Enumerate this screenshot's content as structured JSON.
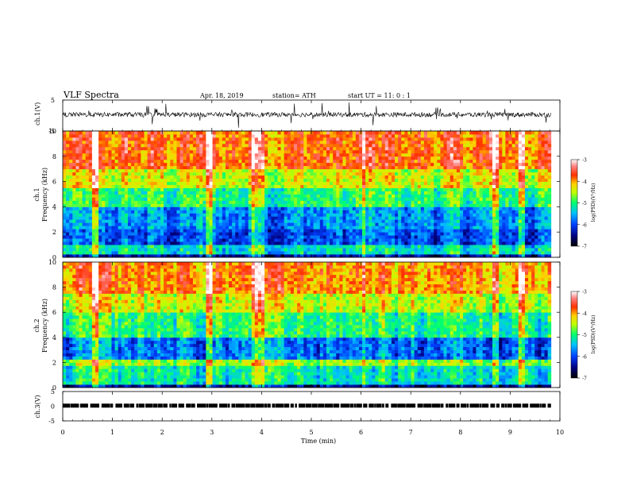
{
  "header": {
    "title": "VLF  Spectra",
    "date": "Apr. 18, 2019",
    "station": "station= ATH",
    "start": "start  UT  =    11: 0   : 1"
  },
  "chart_data": [
    {
      "type": "line",
      "panel": "ch1-waveform",
      "ylabel": "ch.1(V)",
      "yticks": [
        "5",
        "-5"
      ],
      "ylim": [
        -5,
        5
      ],
      "xlim": [
        0,
        10
      ],
      "x_extent": [
        0,
        9.82
      ],
      "description_values": {
        "baseline_v": 0.3,
        "noise_amplitude_v": 1.5
      },
      "color": "#000000"
    },
    {
      "type": "heatmap",
      "panel": "ch1-spectrogram",
      "ylabel_top": "ch.1",
      "ylabel": "Frequency (kHz)",
      "yticks": [
        "0",
        "2",
        "4",
        "6",
        "8",
        "10"
      ],
      "ylim": [
        0,
        10
      ],
      "xlim": [
        0,
        10
      ],
      "x_extent": [
        0,
        9.82
      ],
      "colorbar": {
        "label": "log(PSD)(V²/Hz)",
        "ticks": [
          "-3",
          "-4",
          "-5",
          "-6",
          "-7"
        ],
        "range": [
          -7,
          -3
        ]
      },
      "bands_khz": [
        {
          "f": [
            0,
            0.3
          ],
          "level": -6.4
        },
        {
          "f": [
            0.3,
            1.1
          ],
          "level": -5.3
        },
        {
          "f": [
            1.1,
            2.2
          ],
          "level": -6.0
        },
        {
          "f": [
            2.2,
            4.0
          ],
          "level": -5.7
        },
        {
          "f": [
            4.0,
            5.5
          ],
          "level": -5.0
        },
        {
          "f": [
            5.5,
            7.0
          ],
          "level": -4.4
        },
        {
          "f": [
            7.0,
            10.0
          ],
          "level": -3.8
        }
      ],
      "vertical_features_min": [
        0.65,
        2.95,
        3.85,
        4.0,
        6.05,
        8.72,
        9.22
      ]
    },
    {
      "type": "heatmap",
      "panel": "ch2-spectrogram",
      "ylabel_top": "ch.2",
      "ylabel": "Frequency (kHz)",
      "yticks": [
        "0",
        "2",
        "4",
        "6",
        "8",
        "10"
      ],
      "ylim": [
        0,
        10
      ],
      "xlim": [
        0,
        10
      ],
      "x_extent": [
        0,
        9.82
      ],
      "colorbar": {
        "label": "log(PSD)(V²/Hz)",
        "ticks": [
          "-3",
          "-4",
          "-5",
          "-6",
          "-7"
        ],
        "range": [
          -7,
          -3
        ]
      },
      "bands_khz": [
        {
          "f": [
            0,
            0.3
          ],
          "level": -6.4
        },
        {
          "f": [
            0.3,
            1.8
          ],
          "level": -5.2
        },
        {
          "f": [
            1.8,
            2.3
          ],
          "level": -4.6
        },
        {
          "f": [
            2.3,
            4.0
          ],
          "level": -5.8
        },
        {
          "f": [
            4.0,
            6.0
          ],
          "level": -5.0
        },
        {
          "f": [
            6.0,
            7.5
          ],
          "level": -4.4
        },
        {
          "f": [
            7.5,
            10.0
          ],
          "level": -3.9
        }
      ],
      "vertical_features_min": [
        0.65,
        2.95,
        3.85,
        4.0,
        6.05,
        8.72,
        9.22
      ]
    },
    {
      "type": "line",
      "panel": "ch3-waveform",
      "ylabel": "ch.3(V)",
      "yticks": [
        "5",
        "0",
        "-5"
      ],
      "ylim": [
        -5,
        5
      ],
      "xlim": [
        0,
        10
      ],
      "x_extent": [
        0,
        9.82
      ],
      "description_values": {
        "level_v": 0.2
      },
      "color": "#000000"
    }
  ],
  "xaxis": {
    "label": "Time  (min)",
    "ticks": [
      "0",
      "1",
      "2",
      "3",
      "4",
      "5",
      "6",
      "7",
      "8",
      "9",
      "10"
    ],
    "range": [
      0,
      10
    ]
  }
}
